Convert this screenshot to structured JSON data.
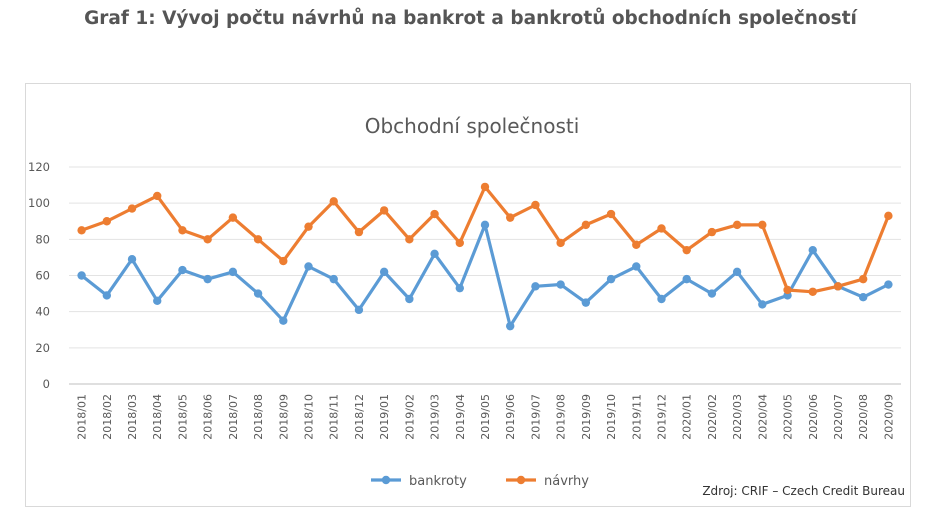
{
  "page": {
    "title": "Graf 1: Vývoj počtu návrhů na bankrot a bankrotů obchodních společností",
    "source": "Zdroj: CRIF – Czech Credit Bureau"
  },
  "chart_data": {
    "type": "line",
    "title": "Obchodní společnosti",
    "xlabel": "",
    "ylabel": "",
    "ylim": [
      0,
      120
    ],
    "yticks": [
      0,
      20,
      40,
      60,
      80,
      100,
      120
    ],
    "grid": true,
    "legend_position": "bottom",
    "categories": [
      "2018/01",
      "2018/02",
      "2018/03",
      "2018/04",
      "2018/05",
      "2018/06",
      "2018/07",
      "2018/08",
      "2018/09",
      "2018/10",
      "2018/11",
      "2018/12",
      "2019/01",
      "2019/02",
      "2019/03",
      "2019/04",
      "2019/05",
      "2019/06",
      "2019/07",
      "2019/08",
      "2019/09",
      "2019/10",
      "2019/11",
      "2019/12",
      "2020/01",
      "2020/02",
      "2020/03",
      "2020/04",
      "2020/05",
      "2020/06",
      "2020/07",
      "2020/08",
      "2020/09"
    ],
    "series": [
      {
        "name": "bankroty",
        "color": "#5b9bd5",
        "values": [
          60,
          49,
          69,
          46,
          63,
          58,
          62,
          50,
          35,
          65,
          58,
          41,
          62,
          47,
          72,
          53,
          88,
          32,
          54,
          55,
          45,
          58,
          65,
          47,
          58,
          50,
          62,
          44,
          49,
          74,
          54,
          48,
          55
        ]
      },
      {
        "name": "návrhy",
        "color": "#ed7d31",
        "values": [
          85,
          90,
          97,
          104,
          85,
          80,
          92,
          80,
          68,
          87,
          101,
          84,
          96,
          80,
          94,
          78,
          109,
          92,
          99,
          78,
          88,
          94,
          77,
          86,
          74,
          84,
          88,
          88,
          52,
          51,
          54,
          58,
          93
        ]
      }
    ]
  }
}
